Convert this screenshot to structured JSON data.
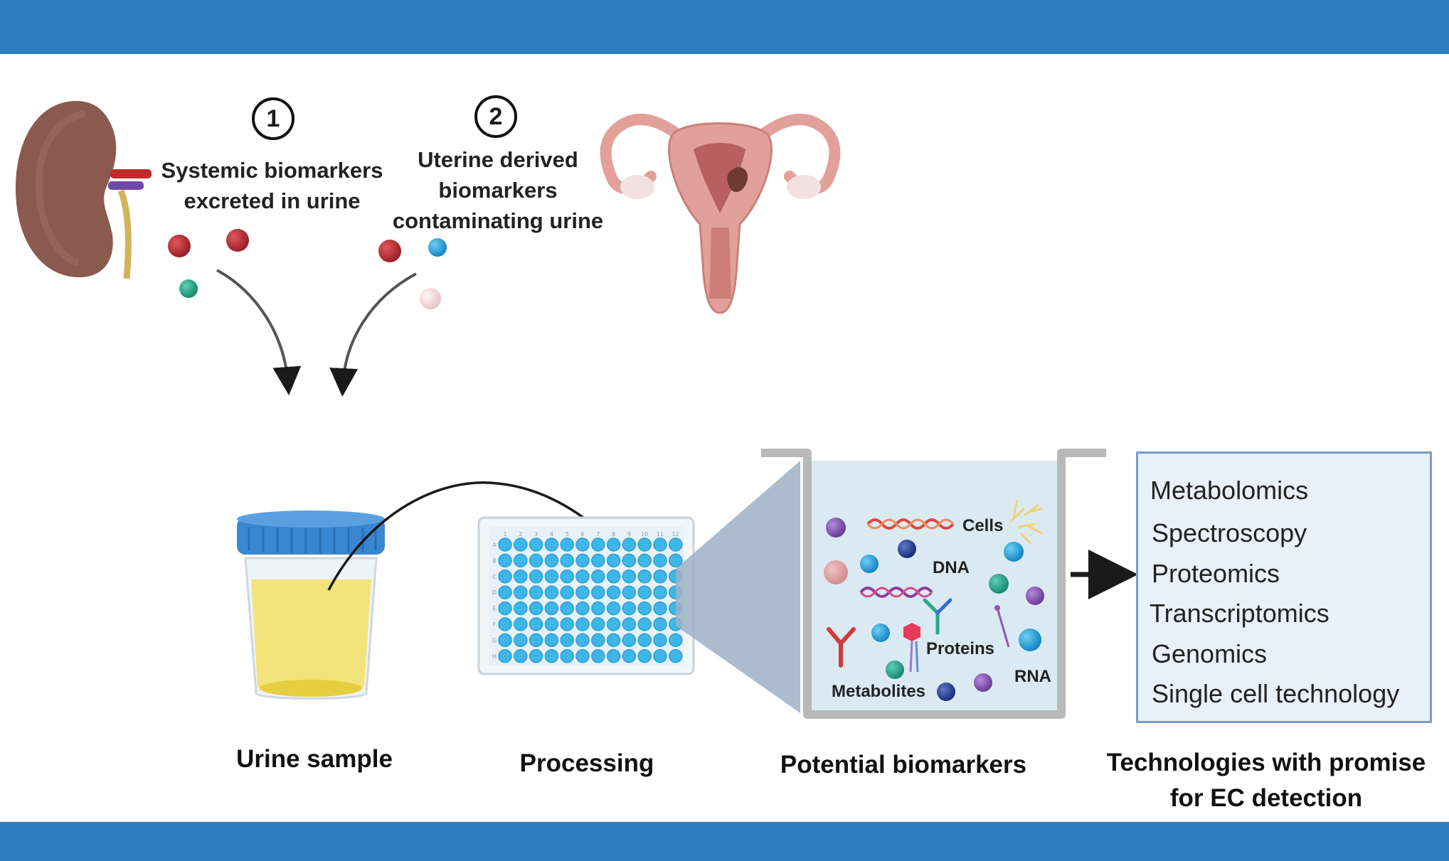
{
  "sources": {
    "systemic": {
      "number": "1",
      "line1": "Systemic biomarkers",
      "line2": "excreted in urine"
    },
    "uterine": {
      "number": "2",
      "line1": "Uterine derived",
      "line2": "biomarkers",
      "line3": "contaminating urine"
    }
  },
  "steps": {
    "urine_sample": "Urine sample",
    "processing": "Processing",
    "potential_biomarkers": "Potential biomarkers",
    "technologies_line1": "Technologies with promise",
    "technologies_line2": "for EC detection"
  },
  "biomarker_labels": {
    "cells": "Cells",
    "dna": "DNA",
    "proteins": "Proteins",
    "rna": "RNA",
    "metabolites": "Metabolites"
  },
  "technologies": [
    "Metabolomics",
    "Spectroscopy",
    "Proteomics",
    "Transcriptomics",
    "Genomics",
    "Single cell technology"
  ],
  "plate": {
    "column_labels": [
      "1",
      "2",
      "3",
      "4",
      "5",
      "6",
      "7",
      "8",
      "9",
      "10",
      "11",
      "12"
    ],
    "row_labels": [
      "A",
      "B",
      "C",
      "D",
      "E",
      "F",
      "G",
      "H"
    ]
  },
  "colors": {
    "band": "#2f7ec2",
    "well": "#3fb6e8",
    "urine": "#f2e47a",
    "cup_lid": "#3a86d1",
    "kidney": "#8b5a4e",
    "uterus": "#e2a09a",
    "marker_red": "#b3262e",
    "marker_teal": "#2aa58c",
    "marker_blue": "#1f9fdc",
    "marker_pink": "#f3d6d8"
  }
}
